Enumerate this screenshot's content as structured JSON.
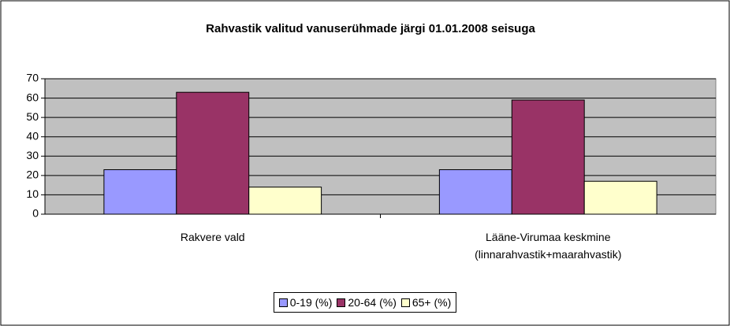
{
  "chart_data": {
    "type": "bar",
    "title": "Rahvastik valitud vanuserühmade järgi 01.01.2008 seisuga",
    "categories": [
      "Rakvere vald",
      "Lääne-Virumaa keskmine\n(linnarahvastik+maarahvastik)"
    ],
    "series": [
      {
        "name": "0-19 (%)",
        "color": "#9999ff",
        "values": [
          23,
          23
        ]
      },
      {
        "name": "20-64 (%)",
        "color": "#993366",
        "values": [
          63,
          59
        ]
      },
      {
        "name": "65+ (%)",
        "color": "#ffffcc",
        "values": [
          14,
          17
        ]
      }
    ],
    "ylim": [
      0,
      70
    ],
    "yticks": [
      0,
      10,
      20,
      30,
      40,
      50,
      60,
      70
    ],
    "grid": true,
    "legend": "bottom"
  }
}
